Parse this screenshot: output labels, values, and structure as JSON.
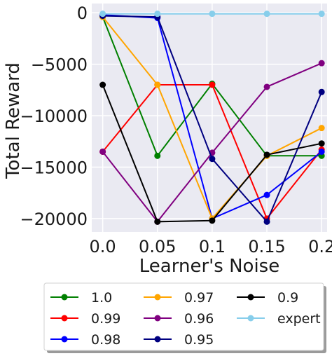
{
  "chart_data": {
    "type": "line",
    "title": "",
    "xlabel": "Learner's Noise",
    "ylabel": "Total Reward",
    "x": [
      0.0,
      0.05,
      0.1,
      0.15,
      0.2
    ],
    "x_tick_labels": [
      "0.0",
      "0.05",
      "0.1",
      "0.15",
      "0.2"
    ],
    "xlim": [
      -0.01,
      0.205
    ],
    "ylim": [
      -21300,
      900
    ],
    "y_ticks": [
      0,
      -5000,
      -10000,
      -15000,
      -20000
    ],
    "y_tick_labels": [
      "0",
      "−5000",
      "−10000",
      "−15000",
      "−20000"
    ],
    "grid": true,
    "legend_position": "below",
    "series": [
      {
        "name": "1.0",
        "color": "#008000",
        "values": [
          -400,
          -13900,
          -6900,
          -13900,
          -13900
        ]
      },
      {
        "name": "0.99",
        "color": "#ff0000",
        "values": [
          -13500,
          -7000,
          -7000,
          -20000,
          -13300
        ]
      },
      {
        "name": "0.98",
        "color": "#0000ff",
        "values": [
          -200,
          -500,
          -20000,
          -17700,
          -13500
        ]
      },
      {
        "name": "0.97",
        "color": "#ffa500",
        "values": [
          -400,
          -7000,
          -20000,
          -13900,
          -11200
        ]
      },
      {
        "name": "0.96",
        "color": "#800080",
        "values": [
          -13500,
          -20300,
          -13600,
          -7200,
          -4900
        ]
      },
      {
        "name": "0.95",
        "color": "#000080",
        "values": [
          -300,
          -400,
          -14200,
          -20300,
          -7700
        ]
      },
      {
        "name": "0.9",
        "color": "#000000",
        "values": [
          -7000,
          -20300,
          -20200,
          -13800,
          -12700
        ]
      },
      {
        "name": "expert",
        "color": "#87ceeb",
        "values": [
          -100,
          -100,
          -100,
          -100,
          -100
        ]
      }
    ]
  }
}
